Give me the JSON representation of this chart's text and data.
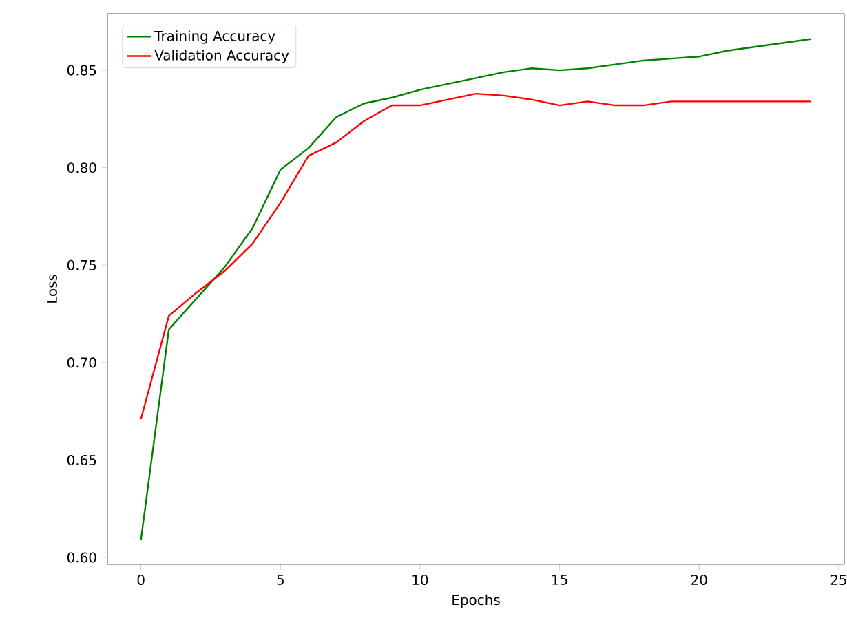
{
  "chart_data": {
    "type": "line",
    "xlabel": "Epochs",
    "ylabel": "Loss",
    "x": [
      0,
      1,
      2,
      3,
      4,
      5,
      6,
      7,
      8,
      9,
      10,
      11,
      12,
      13,
      14,
      15,
      16,
      17,
      18,
      19,
      20,
      21,
      22,
      23,
      24
    ],
    "series": [
      {
        "name": "Training Accuracy",
        "color": "#008000",
        "values": [
          0.609,
          0.717,
          0.733,
          0.749,
          0.769,
          0.799,
          0.81,
          0.826,
          0.833,
          0.836,
          0.84,
          0.843,
          0.846,
          0.849,
          0.851,
          0.85,
          0.851,
          0.853,
          0.855,
          0.856,
          0.857,
          0.86,
          0.862,
          0.864,
          0.866
        ]
      },
      {
        "name": "Validation Accuracy",
        "color": "#ff0000",
        "values": [
          0.671,
          0.724,
          0.736,
          0.747,
          0.761,
          0.782,
          0.806,
          0.813,
          0.824,
          0.832,
          0.832,
          0.835,
          0.838,
          0.837,
          0.835,
          0.832,
          0.834,
          0.832,
          0.832,
          0.834,
          0.834,
          0.834,
          0.834,
          0.834,
          0.834
        ]
      }
    ],
    "xlim": [
      -1.2,
      25.2
    ],
    "ylim": [
      0.5965,
      0.879
    ],
    "xticks": [
      0,
      5,
      10,
      15,
      20,
      25
    ],
    "yticks": [
      {
        "value": 0.6,
        "label": "0.60"
      },
      0.65,
      {
        "value": 0.7,
        "label": "0.70"
      },
      0.75,
      {
        "value": 0.8,
        "label": "0.80"
      },
      0.85
    ],
    "legend": "top left",
    "grid": false,
    "marker": "none",
    "line_style": "solid"
  }
}
